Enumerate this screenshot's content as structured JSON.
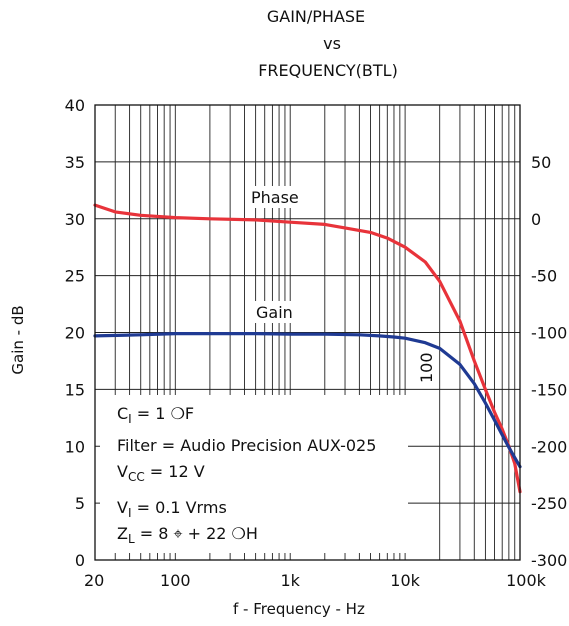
{
  "chart_data": {
    "type": "line",
    "title": [
      "GAIN/PHASE",
      "vs",
      "FREQUENCY(BTL)"
    ],
    "xlabel": "f - Frequency - Hz",
    "ylabel": "Gain - dB",
    "xscale": "log",
    "xlim": [
      20,
      100000
    ],
    "ylim": [
      0,
      40
    ],
    "y2lim": [
      -300,
      100
    ],
    "grid": true,
    "x_ticks": [
      {
        "value": 20,
        "label": "20"
      },
      {
        "value": 100,
        "label": "100"
      },
      {
        "value": 1000,
        "label": "1k"
      },
      {
        "value": 10000,
        "label": "10k"
      },
      {
        "value": 100000,
        "label": "100k"
      }
    ],
    "y_ticks": [
      0,
      5,
      10,
      15,
      20,
      25,
      30,
      35,
      40
    ],
    "y2_ticks": [
      50,
      0,
      -50,
      -100,
      -150,
      -200,
      -250,
      -300
    ],
    "series": [
      {
        "name": "Phase",
        "axis": "right",
        "color": "#e8333a",
        "x": [
          20,
          30,
          50,
          100,
          200,
          500,
          1000,
          2000,
          3000,
          5000,
          7000,
          10000,
          15000,
          20000,
          30000,
          40000,
          50000,
          60000,
          70000,
          80000,
          90000,
          100000
        ],
        "y": [
          12,
          6,
          3,
          1,
          0,
          -1,
          -3,
          -5,
          -8,
          -12,
          -17,
          -25,
          -38,
          -55,
          -90,
          -125,
          -150,
          -170,
          -185,
          -200,
          -215,
          -240
        ]
      },
      {
        "name": "Gain",
        "axis": "left",
        "color": "#1f3a93",
        "x": [
          20,
          50,
          100,
          200,
          500,
          1000,
          2000,
          4000,
          6000,
          8000,
          10000,
          15000,
          20000,
          30000,
          40000,
          50000,
          60000,
          70000,
          80000,
          90000,
          100000
        ],
        "y": [
          19.7,
          19.8,
          19.9,
          19.9,
          19.9,
          19.85,
          19.85,
          19.8,
          19.7,
          19.6,
          19.5,
          19.1,
          18.6,
          17.2,
          15.5,
          13.8,
          12.3,
          11.0,
          9.9,
          9.0,
          8.2
        ]
      }
    ],
    "annotations": {
      "series_labels": [
        "Phase",
        "Gain"
      ],
      "rotated_label": "100",
      "conditions": [
        {
          "base": "C",
          "sub": "I",
          "rest": " = 1 ❍F"
        },
        {
          "base": "Filter = Audio Precision AUX-025",
          "sub": "",
          "rest": ""
        },
        {
          "base": "V",
          "sub": "CC",
          "rest": " = 12 V"
        },
        {
          "base": "V",
          "sub": "I",
          "rest": " = 0.1 Vrms"
        },
        {
          "base": "Z",
          "sub": "L",
          "rest": " = 8 ⌖ + 22 ❍H"
        }
      ]
    }
  }
}
